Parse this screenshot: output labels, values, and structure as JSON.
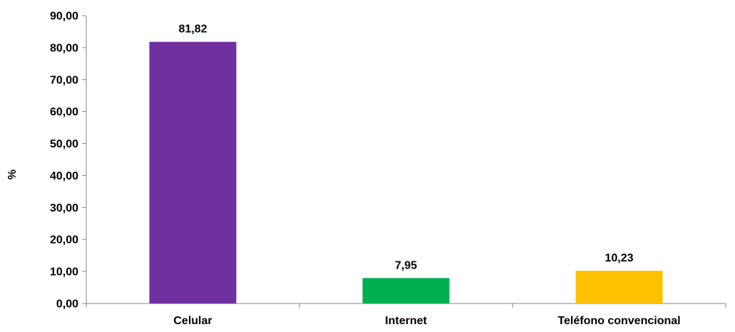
{
  "chart_data": {
    "type": "bar",
    "title": "",
    "xlabel": "",
    "ylabel": "%",
    "ylim": [
      0,
      90
    ],
    "ytick_step": 10,
    "ytick_labels": [
      "0,00",
      "10,00",
      "20,00",
      "30,00",
      "40,00",
      "50,00",
      "60,00",
      "70,00",
      "80,00",
      "90,00"
    ],
    "grid": false,
    "legend": "none",
    "categories": [
      "Celular",
      "Internet",
      "Teléfono convencional"
    ],
    "values": [
      81.82,
      7.95,
      10.23
    ],
    "value_labels": [
      "81,82",
      "7,95",
      "10,23"
    ],
    "colors": [
      "#7030A0",
      "#00B050",
      "#FFC000"
    ],
    "axis_color": "#868686"
  }
}
